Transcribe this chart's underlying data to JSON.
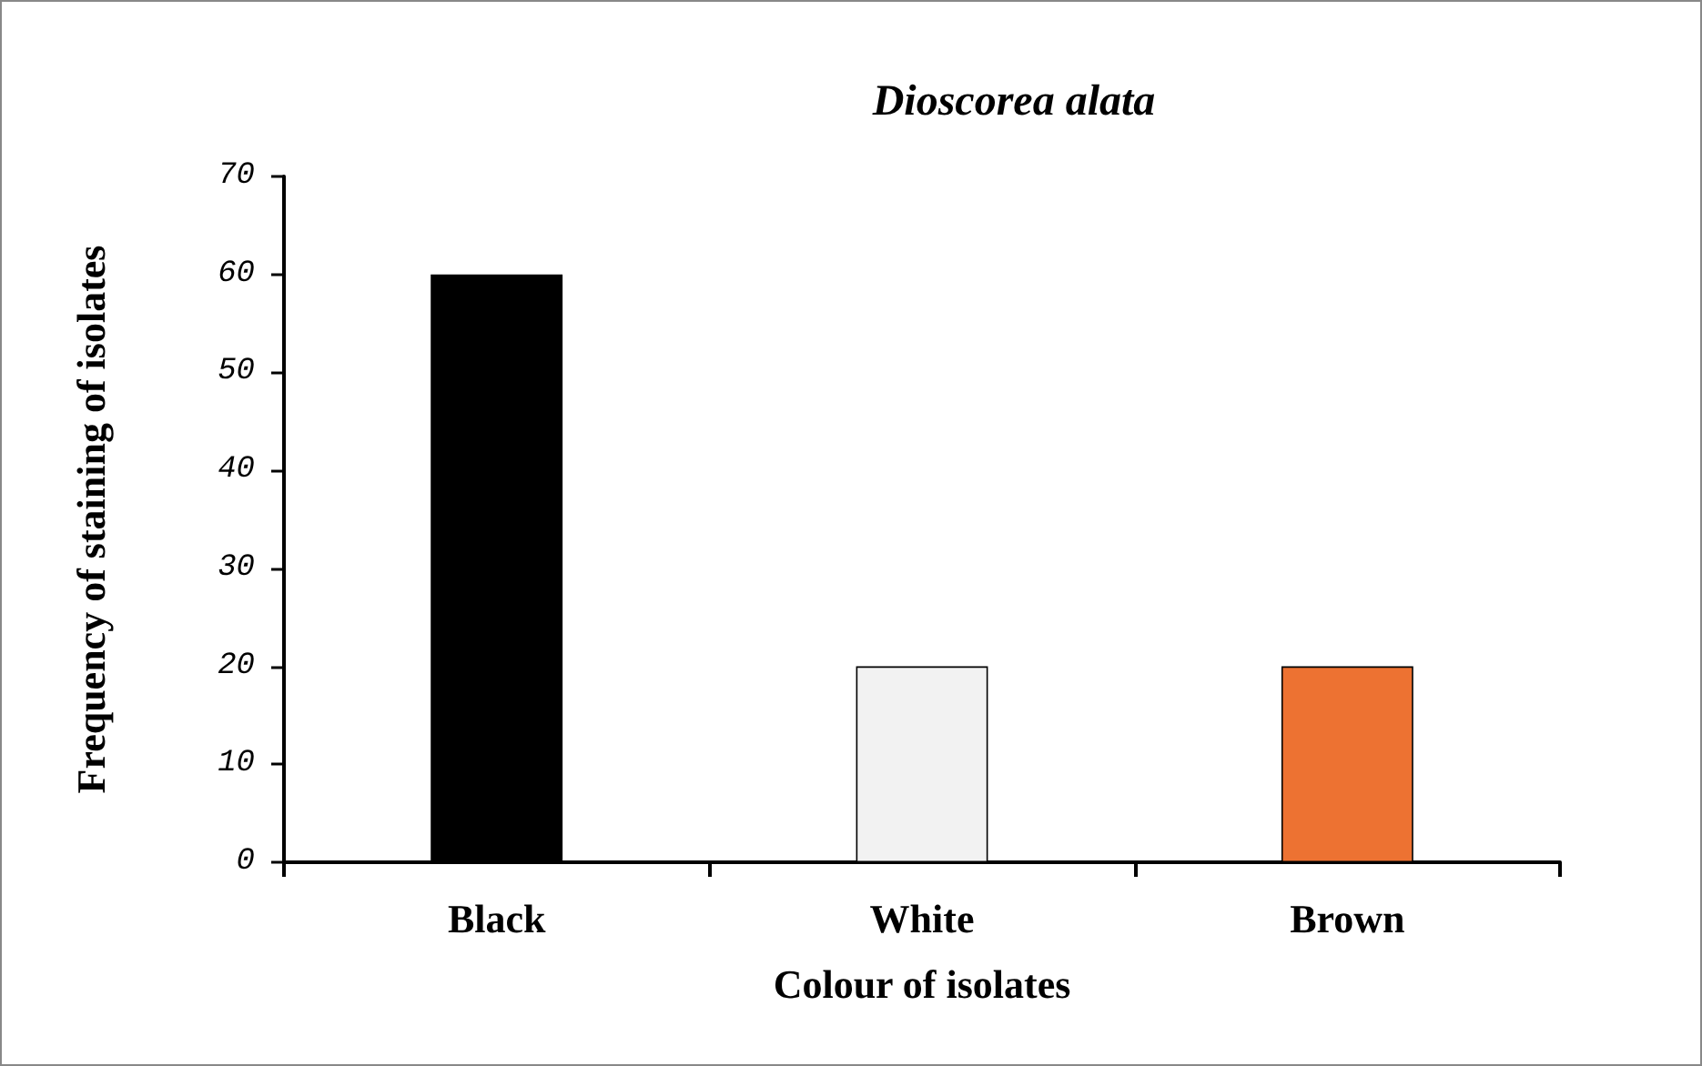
{
  "chart_data": {
    "type": "bar",
    "title": "Dioscorea alata",
    "xlabel": "Colour of isolates",
    "ylabel": "Frequency of staining of isolates",
    "categories": [
      "Black",
      "White",
      "Brown"
    ],
    "values": [
      60,
      20,
      20
    ],
    "colors": [
      "#000000",
      "#f2f2f2",
      "#ed7232"
    ],
    "ylim": [
      0,
      70
    ],
    "yticks": [
      0,
      10,
      20,
      30,
      40,
      50,
      60,
      70
    ]
  }
}
